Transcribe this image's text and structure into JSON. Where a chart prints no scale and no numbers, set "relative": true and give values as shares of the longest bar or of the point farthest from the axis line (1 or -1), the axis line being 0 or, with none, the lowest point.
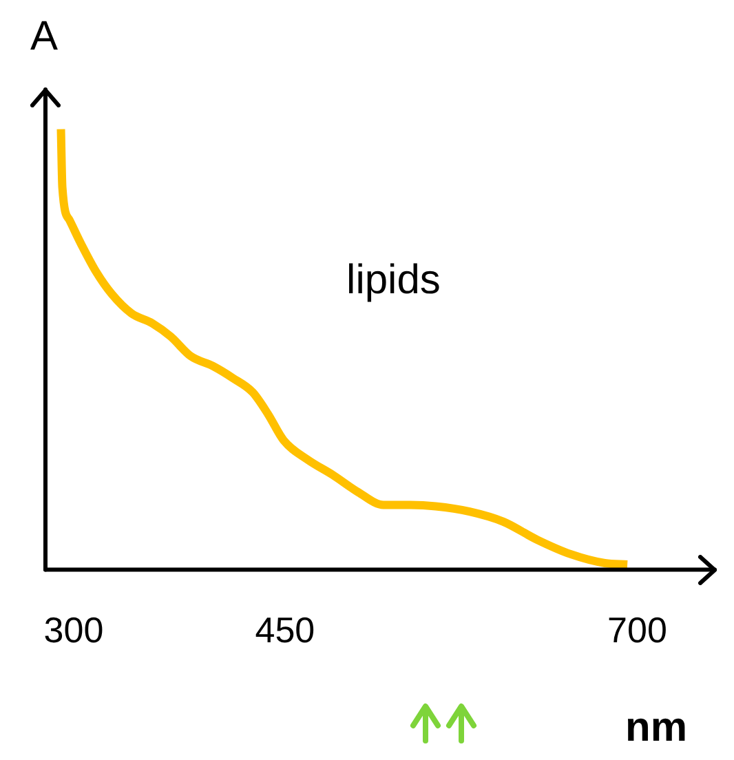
{
  "chart_data": {
    "type": "line",
    "xlabel": "nm",
    "ylabel": "A",
    "relative": true,
    "xlim": [
      280,
      755
    ],
    "xticks": [
      300,
      450,
      700
    ],
    "grid": false,
    "legend": false,
    "marker": "none",
    "line_style": "solid",
    "series": [
      {
        "name": "lipids",
        "color": "#ffc000",
        "x": [
          291,
          292,
          297,
          306,
          316,
          327,
          341,
          356,
          369,
          383,
          399,
          413,
          427,
          438,
          449,
          466,
          484,
          502,
          520,
          539,
          557,
          581,
          605,
          629,
          653,
          677,
          693
        ],
        "values": [
          1.0,
          0.868,
          0.794,
          0.735,
          0.676,
          0.626,
          0.582,
          0.559,
          0.529,
          0.485,
          0.462,
          0.435,
          0.403,
          0.353,
          0.294,
          0.25,
          0.215,
          0.176,
          0.147,
          0.147,
          0.144,
          0.132,
          0.109,
          0.068,
          0.035,
          0.015,
          0.012
        ]
      }
    ]
  }
}
